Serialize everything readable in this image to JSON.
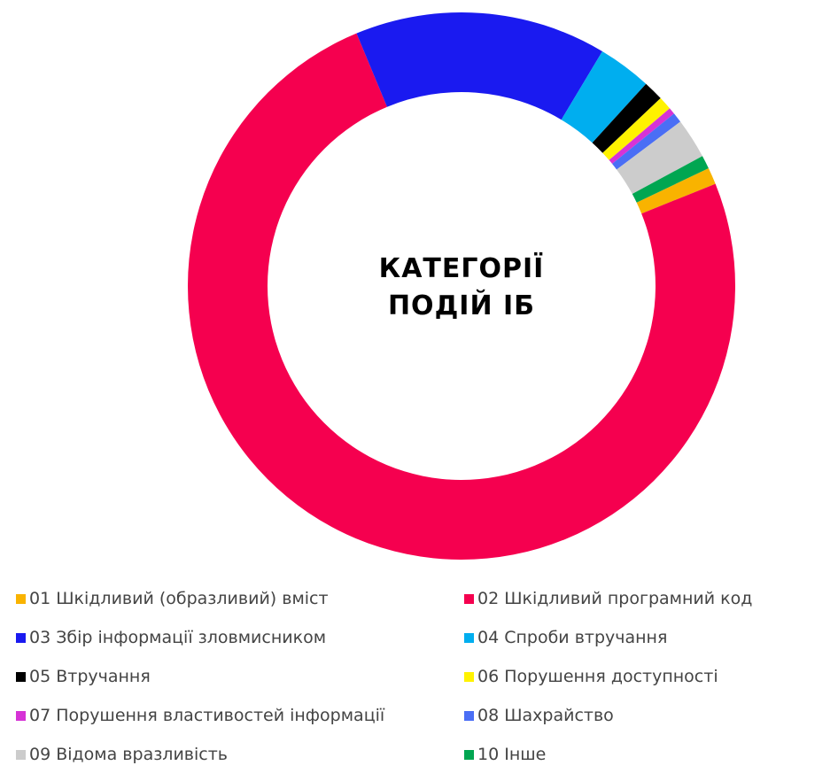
{
  "chart_data": {
    "type": "pie",
    "title": "КАТЕГОРІЇ ПОДІЙ ІБ",
    "title_lines": [
      "КАТЕГОРІЇ",
      "ПОДІЙ ІБ"
    ],
    "style": "donut",
    "legend_position": "bottom",
    "categories": [
      "01 Шкідливий (образливий) вміст",
      "02 Шкідливий програмний код",
      "03 Збір інформації зловмисником",
      "04 Спроби втручання",
      "05 Втручання",
      "06 Порушення доступності",
      "07 Порушення властивостей інформації",
      "08 Шахрайство",
      "09 Відома вразливість",
      "10 Інше"
    ],
    "values": [
      1.0,
      75.5,
      15.0,
      3.2,
      1.2,
      0.8,
      0.4,
      0.6,
      2.4,
      0.8
    ],
    "colors": [
      "#F9B300",
      "#F5004F",
      "#1A1AF0",
      "#00AEEF",
      "#000000",
      "#FFF200",
      "#D633D6",
      "#4A6EF5",
      "#CCCCCC",
      "#00A651"
    ]
  }
}
